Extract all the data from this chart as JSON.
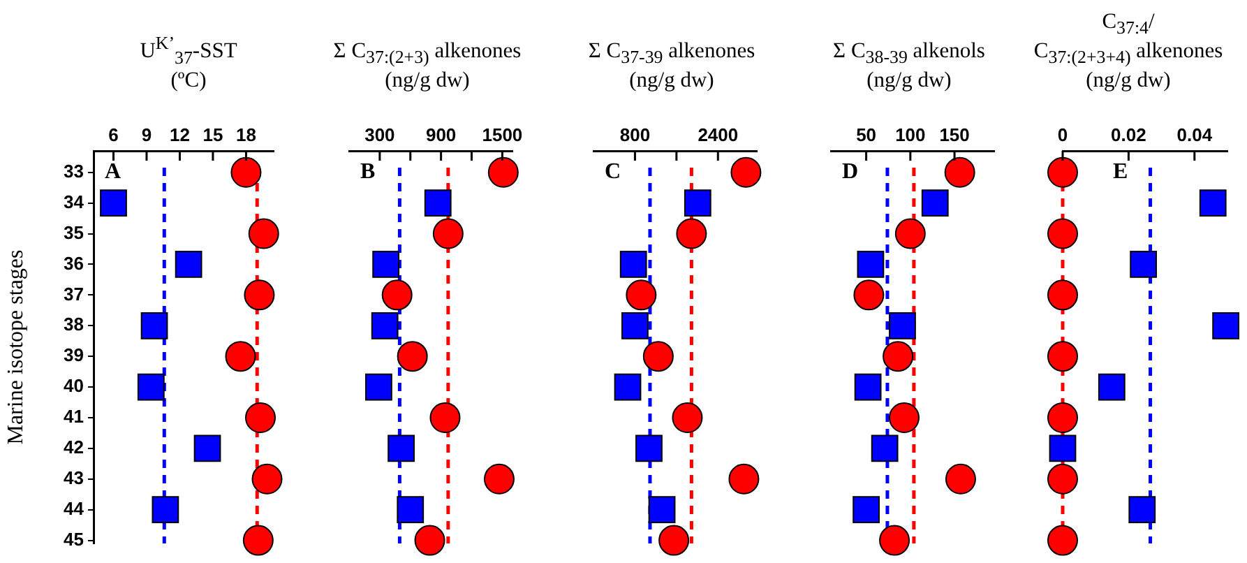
{
  "chart_data": [
    {
      "type": "scatter",
      "orientation": "horizontal",
      "xlabel": "U$^{K’}$$_{37}$-SST\n(ºC)",
      "ylabel": "Marine isotope stages",
      "categories": [
        "33",
        "34",
        "35",
        "36",
        "37",
        "38",
        "39",
        "40",
        "41",
        "42",
        "43",
        "44",
        "45"
      ],
      "xlim": [
        4.2,
        20.5
      ],
      "xticks": [
        6,
        9,
        12,
        15,
        18
      ],
      "grid": false,
      "legend": false,
      "annotations": [
        "A"
      ],
      "series": [
        {
          "color": "#ff0000",
          "marker": "circle",
          "values": [
            18.0,
            null,
            19.6,
            null,
            19.2,
            null,
            17.5,
            null,
            19.3,
            null,
            19.9,
            null,
            19.1
          ]
        },
        {
          "color": "#0000ff",
          "marker": "square",
          "values": [
            null,
            6.0,
            null,
            12.8,
            null,
            9.7,
            null,
            9.4,
            null,
            14.5,
            null,
            10.7,
            null
          ]
        }
      ],
      "ref_lines": [
        {
          "axis": "x",
          "value": 19.0,
          "color": "#ff0000",
          "line_style": "dashed"
        },
        {
          "axis": "x",
          "value": 10.6,
          "color": "#0000ff",
          "line_style": "dashed"
        }
      ]
    },
    {
      "type": "scatter",
      "orientation": "horizontal",
      "xlabel": "Σ C$_{37:(2+3)}$ alkenones\n(ng/g dw)",
      "categories": [
        "33",
        "34",
        "35",
        "36",
        "37",
        "38",
        "39",
        "40",
        "41",
        "42",
        "43",
        "44",
        "45"
      ],
      "tick_labels": "x",
      "xlim": [
        0,
        1600
      ],
      "xticks": [
        300,
        {
          "value": 600,
          "label": null
        },
        900,
        {
          "value": 1200,
          "label": null
        },
        1500
      ],
      "grid": false,
      "legend": false,
      "annotations": [
        "B"
      ],
      "series": [
        {
          "color": "#ff0000",
          "marker": "circle",
          "values": [
            1510,
            null,
            970,
            null,
            470,
            null,
            620,
            null,
            940,
            null,
            1470,
            null,
            790
          ]
        },
        {
          "color": "#0000ff",
          "marker": "square",
          "values": [
            null,
            870,
            null,
            360,
            null,
            350,
            null,
            290,
            null,
            510,
            null,
            600,
            null
          ]
        }
      ],
      "ref_lines": [
        {
          "axis": "x",
          "value": 970,
          "color": "#ff0000",
          "line_style": "dashed"
        },
        {
          "axis": "x",
          "value": 495,
          "color": "#0000ff",
          "line_style": "dashed"
        }
      ]
    },
    {
      "type": "scatter",
      "orientation": "horizontal",
      "xlabel": "Σ C$_{37-39}$ alkenones\n(ng/g dw)",
      "categories": [
        "33",
        "34",
        "35",
        "36",
        "37",
        "38",
        "39",
        "40",
        "41",
        "42",
        "43",
        "44",
        "45"
      ],
      "tick_labels": "x",
      "xlim": [
        0,
        3150
      ],
      "xticks": [
        800,
        {
          "value": 1600,
          "label": null
        },
        2400
      ],
      "grid": false,
      "legend": false,
      "annotations": [
        "C"
      ],
      "series": [
        {
          "color": "#ff0000",
          "marker": "circle",
          "values": [
            2940,
            null,
            1890,
            null,
            920,
            null,
            1250,
            null,
            1810,
            null,
            2900,
            null,
            1550
          ]
        },
        {
          "color": "#0000ff",
          "marker": "square",
          "values": [
            null,
            2010,
            null,
            770,
            null,
            800,
            null,
            660,
            null,
            1070,
            null,
            1320,
            null
          ]
        }
      ],
      "ref_lines": [
        {
          "axis": "x",
          "value": 1890,
          "color": "#ff0000",
          "line_style": "dashed"
        },
        {
          "axis": "x",
          "value": 1090,
          "color": "#0000ff",
          "line_style": "dashed"
        }
      ]
    },
    {
      "type": "scatter",
      "orientation": "horizontal",
      "xlabel": "Σ C$_{38-39}$ alkenols\n(ng/g dw)",
      "categories": [
        "33",
        "34",
        "35",
        "36",
        "37",
        "38",
        "39",
        "40",
        "41",
        "42",
        "43",
        "44",
        "45"
      ],
      "tick_labels": "x",
      "xlim": [
        10,
        195
      ],
      "xticks": [
        50,
        100,
        150
      ],
      "grid": false,
      "legend": false,
      "annotations": [
        "D"
      ],
      "series": [
        {
          "color": "#ff0000",
          "marker": "circle",
          "values": [
            156,
            null,
            100,
            null,
            53,
            null,
            86,
            null,
            93,
            null,
            157,
            null,
            82
          ]
        },
        {
          "color": "#0000ff",
          "marker": "square",
          "values": [
            null,
            128,
            null,
            55,
            null,
            91,
            null,
            52,
            null,
            71,
            null,
            50,
            null
          ]
        }
      ],
      "ref_lines": [
        {
          "axis": "x",
          "value": 104,
          "color": "#ff0000",
          "line_style": "dashed"
        },
        {
          "axis": "x",
          "value": 74,
          "color": "#0000ff",
          "line_style": "dashed"
        }
      ]
    },
    {
      "type": "scatter",
      "orientation": "horizontal",
      "xlabel": "C$_{37:4}$/\nC$_{37:(2+3+4)}$ alkenones\n(ng/g dw)",
      "categories": [
        "33",
        "34",
        "35",
        "36",
        "37",
        "38",
        "39",
        "40",
        "41",
        "42",
        "43",
        "44",
        "45"
      ],
      "tick_labels": "x",
      "xlim": [
        0,
        0.05
      ],
      "xticks": [
        0,
        0.02,
        0.04
      ],
      "grid": false,
      "legend": false,
      "annotations": [
        "E"
      ],
      "series": [
        {
          "color": "#ff0000",
          "marker": "circle",
          "values": [
            0,
            null,
            0,
            null,
            0,
            null,
            0,
            null,
            0,
            null,
            0,
            null,
            0
          ]
        },
        {
          "color": "#0000ff",
          "marker": "square",
          "values": [
            null,
            0.0456,
            null,
            0.0245,
            null,
            0.0495,
            null,
            0.0149,
            null,
            0,
            null,
            0.0241,
            null
          ]
        }
      ],
      "ref_lines": [
        {
          "axis": "x",
          "value": 0,
          "color": "#ff0000",
          "line_style": "dashed"
        },
        {
          "axis": "x",
          "value": 0.0266,
          "color": "#0000ff",
          "line_style": "dashed"
        }
      ]
    }
  ]
}
